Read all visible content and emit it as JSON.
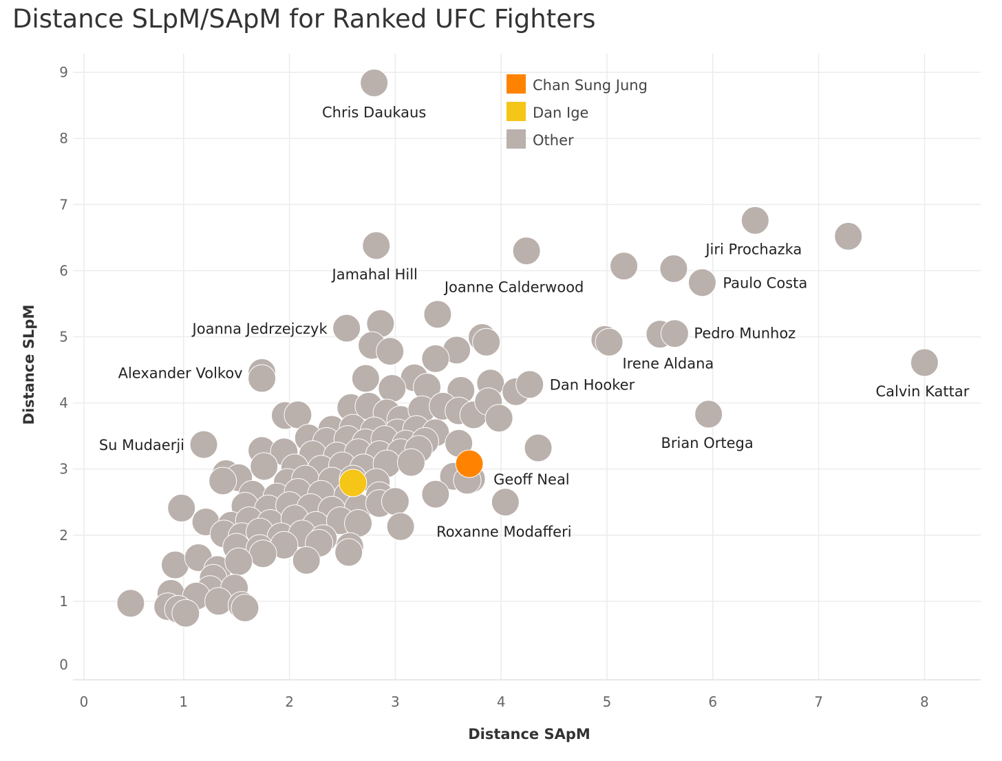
{
  "chart_data": {
    "type": "scatter",
    "title": "Distance SLpM/SApM for Ranked UFC Fighters",
    "xlabel": "Distance SApM",
    "ylabel": "Distance SLpM",
    "xlim": [
      0,
      8.5
    ],
    "ylim": [
      0,
      9.5
    ],
    "xticks": [
      "0",
      "1",
      "2",
      "3",
      "4",
      "5",
      "6",
      "7",
      "8"
    ],
    "yticks": [
      "0",
      "1",
      "2",
      "3",
      "4",
      "5",
      "6",
      "7",
      "8",
      "9"
    ],
    "grid": true,
    "legend_position": "top-center",
    "legend": [
      {
        "name": "Chan Sung Jung",
        "color": "#FF8300"
      },
      {
        "name": "Dan Ige",
        "color": "#F5C518"
      },
      {
        "name": "Other",
        "color": "#BAB0AC"
      }
    ],
    "series": [
      {
        "name": "Other",
        "color": "#BAB0AC",
        "points": [
          {
            "x": 2.8,
            "y": 8.84,
            "label": "Chris Daukaus"
          },
          {
            "x": 6.4,
            "y": 6.76,
            "label": "Jiri Prochazka"
          },
          {
            "x": 7.28,
            "y": 6.52
          },
          {
            "x": 2.82,
            "y": 6.38,
            "label": "Jamahal Hill"
          },
          {
            "x": 4.24,
            "y": 6.3,
            "label": "Joanne Calderwood"
          },
          {
            "x": 5.16,
            "y": 6.07
          },
          {
            "x": 5.63,
            "y": 6.03
          },
          {
            "x": 5.9,
            "y": 5.82,
            "label": "Paulo Costa"
          },
          {
            "x": 3.4,
            "y": 5.34
          },
          {
            "x": 2.54,
            "y": 5.13,
            "label": "Joanna Jedrzejczyk"
          },
          {
            "x": 2.86,
            "y": 5.2
          },
          {
            "x": 3.82,
            "y": 4.99
          },
          {
            "x": 3.86,
            "y": 4.92
          },
          {
            "x": 4.98,
            "y": 4.96
          },
          {
            "x": 5.02,
            "y": 4.92
          },
          {
            "x": 5.5,
            "y": 5.04,
            "label": "Irene Aldana"
          },
          {
            "x": 5.64,
            "y": 5.05,
            "label": "Pedro Munhoz"
          },
          {
            "x": 2.78,
            "y": 4.87
          },
          {
            "x": 2.95,
            "y": 4.78
          },
          {
            "x": 3.58,
            "y": 4.8
          },
          {
            "x": 3.38,
            "y": 4.67
          },
          {
            "x": 1.74,
            "y": 4.46,
            "label": "Alexander Volkov"
          },
          {
            "x": 1.74,
            "y": 4.37
          },
          {
            "x": 2.72,
            "y": 4.37
          },
          {
            "x": 3.18,
            "y": 4.38
          },
          {
            "x": 2.97,
            "y": 4.22
          },
          {
            "x": 3.3,
            "y": 4.24
          },
          {
            "x": 3.62,
            "y": 4.19
          },
          {
            "x": 3.9,
            "y": 4.3
          },
          {
            "x": 4.14,
            "y": 4.17
          },
          {
            "x": 4.27,
            "y": 4.28,
            "label": "Dan Hooker"
          },
          {
            "x": 8.0,
            "y": 4.61,
            "label": "Calvin Kattar"
          },
          {
            "x": 1.96,
            "y": 3.81
          },
          {
            "x": 2.08,
            "y": 3.82
          },
          {
            "x": 2.58,
            "y": 3.93
          },
          {
            "x": 2.75,
            "y": 3.95
          },
          {
            "x": 2.92,
            "y": 3.85
          },
          {
            "x": 3.05,
            "y": 3.75
          },
          {
            "x": 3.25,
            "y": 3.9
          },
          {
            "x": 3.45,
            "y": 3.95
          },
          {
            "x": 3.6,
            "y": 3.88
          },
          {
            "x": 3.74,
            "y": 3.82
          },
          {
            "x": 3.88,
            "y": 4.02
          },
          {
            "x": 3.98,
            "y": 3.77
          },
          {
            "x": 2.4,
            "y": 3.6
          },
          {
            "x": 2.6,
            "y": 3.62
          },
          {
            "x": 2.8,
            "y": 3.58
          },
          {
            "x": 3.02,
            "y": 3.55
          },
          {
            "x": 3.2,
            "y": 3.6
          },
          {
            "x": 3.38,
            "y": 3.55
          },
          {
            "x": 2.18,
            "y": 3.47
          },
          {
            "x": 2.35,
            "y": 3.42
          },
          {
            "x": 2.55,
            "y": 3.45
          },
          {
            "x": 2.72,
            "y": 3.4
          },
          {
            "x": 2.9,
            "y": 3.45
          },
          {
            "x": 3.1,
            "y": 3.38
          },
          {
            "x": 3.28,
            "y": 3.42
          },
          {
            "x": 3.6,
            "y": 3.39
          },
          {
            "x": 1.19,
            "y": 3.37,
            "label": "Su Mudaerji"
          },
          {
            "x": 4.35,
            "y": 3.32
          },
          {
            "x": 1.74,
            "y": 3.28
          },
          {
            "x": 1.95,
            "y": 3.26
          },
          {
            "x": 2.22,
            "y": 3.22
          },
          {
            "x": 2.45,
            "y": 3.2
          },
          {
            "x": 2.65,
            "y": 3.25
          },
          {
            "x": 2.85,
            "y": 3.22
          },
          {
            "x": 3.05,
            "y": 3.25
          },
          {
            "x": 3.22,
            "y": 3.3
          },
          {
            "x": 5.96,
            "y": 3.83,
            "label": "Brian Ortega"
          },
          {
            "x": 1.76,
            "y": 3.04
          },
          {
            "x": 2.05,
            "y": 3.02
          },
          {
            "x": 2.3,
            "y": 3.0
          },
          {
            "x": 2.5,
            "y": 3.05
          },
          {
            "x": 2.7,
            "y": 3.02
          },
          {
            "x": 2.92,
            "y": 3.08
          },
          {
            "x": 3.15,
            "y": 3.1
          },
          {
            "x": 1.4,
            "y": 2.93
          },
          {
            "x": 1.52,
            "y": 2.87
          },
          {
            "x": 1.37,
            "y": 2.82
          },
          {
            "x": 1.98,
            "y": 2.8
          },
          {
            "x": 2.15,
            "y": 2.85
          },
          {
            "x": 2.4,
            "y": 2.82
          },
          {
            "x": 2.6,
            "y": 2.85
          },
          {
            "x": 2.82,
            "y": 2.8
          },
          {
            "x": 3.55,
            "y": 2.89
          },
          {
            "x": 3.72,
            "y": 2.85,
            "label": "Geoff Neal"
          },
          {
            "x": 3.68,
            "y": 2.83
          },
          {
            "x": 1.65,
            "y": 2.62
          },
          {
            "x": 1.88,
            "y": 2.58
          },
          {
            "x": 2.08,
            "y": 2.65
          },
          {
            "x": 2.3,
            "y": 2.62
          },
          {
            "x": 2.55,
            "y": 2.6
          },
          {
            "x": 2.85,
            "y": 2.6
          },
          {
            "x": 3.38,
            "y": 2.62
          },
          {
            "x": 0.98,
            "y": 2.41
          },
          {
            "x": 1.58,
            "y": 2.44
          },
          {
            "x": 1.8,
            "y": 2.4
          },
          {
            "x": 2.0,
            "y": 2.45
          },
          {
            "x": 2.2,
            "y": 2.42
          },
          {
            "x": 2.4,
            "y": 2.38
          },
          {
            "x": 2.65,
            "y": 2.42
          },
          {
            "x": 2.85,
            "y": 2.48
          },
          {
            "x": 3.0,
            "y": 2.51
          },
          {
            "x": 4.04,
            "y": 2.5,
            "label": "Roxanne Modafferi"
          },
          {
            "x": 1.21,
            "y": 2.2
          },
          {
            "x": 1.45,
            "y": 2.15
          },
          {
            "x": 1.62,
            "y": 2.22
          },
          {
            "x": 1.82,
            "y": 2.18
          },
          {
            "x": 2.05,
            "y": 2.25
          },
          {
            "x": 2.25,
            "y": 2.15
          },
          {
            "x": 2.48,
            "y": 2.22
          },
          {
            "x": 2.65,
            "y": 2.18
          },
          {
            "x": 3.05,
            "y": 2.13
          },
          {
            "x": 1.38,
            "y": 2.02
          },
          {
            "x": 1.55,
            "y": 1.98
          },
          {
            "x": 1.72,
            "y": 2.05
          },
          {
            "x": 1.92,
            "y": 1.98
          },
          {
            "x": 2.12,
            "y": 2.02
          },
          {
            "x": 2.32,
            "y": 1.95
          },
          {
            "x": 1.5,
            "y": 1.82
          },
          {
            "x": 1.72,
            "y": 1.8
          },
          {
            "x": 1.95,
            "y": 1.85
          },
          {
            "x": 2.28,
            "y": 1.88
          },
          {
            "x": 2.57,
            "y": 1.83
          },
          {
            "x": 2.56,
            "y": 1.74
          },
          {
            "x": 1.75,
            "y": 1.72
          },
          {
            "x": 2.16,
            "y": 1.62
          },
          {
            "x": 0.92,
            "y": 1.55
          },
          {
            "x": 1.14,
            "y": 1.66
          },
          {
            "x": 1.32,
            "y": 1.48
          },
          {
            "x": 1.52,
            "y": 1.6
          },
          {
            "x": 1.28,
            "y": 1.35
          },
          {
            "x": 1.25,
            "y": 1.18
          },
          {
            "x": 1.48,
            "y": 1.2
          },
          {
            "x": 0.5,
            "y": 0.97
          },
          {
            "x": 0.88,
            "y": 1.12
          },
          {
            "x": 1.12,
            "y": 1.08
          },
          {
            "x": 1.33,
            "y": 1.0
          },
          {
            "x": 0.85,
            "y": 0.92
          },
          {
            "x": 0.95,
            "y": 0.88
          },
          {
            "x": 1.02,
            "y": 0.82
          },
          {
            "x": 1.55,
            "y": 0.94
          },
          {
            "x": 1.58,
            "y": 0.9
          }
        ]
      },
      {
        "name": "Dan Ige",
        "color": "#F5C518",
        "points": [
          {
            "x": 2.6,
            "y": 2.79
          }
        ]
      },
      {
        "name": "Chan Sung Jung",
        "color": "#FF8300",
        "points": [
          {
            "x": 3.7,
            "y": 3.08
          }
        ]
      }
    ]
  }
}
